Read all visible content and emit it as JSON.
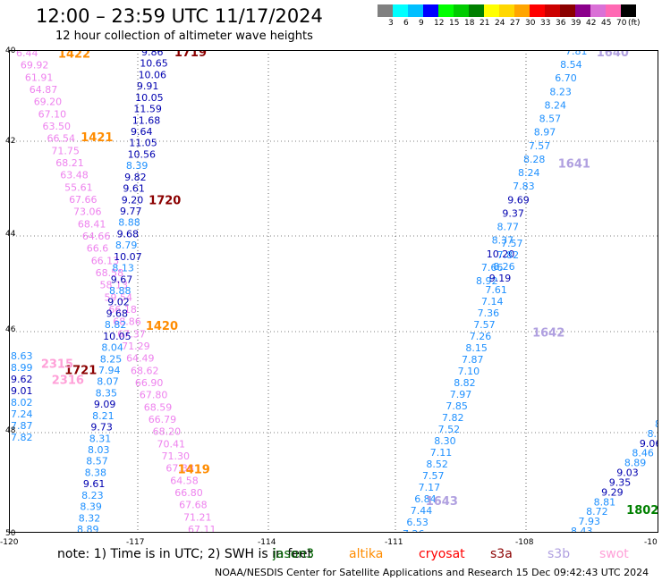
{
  "header": {
    "title": "12:00 – 23:59 UTC 11/17/2024",
    "subtitle": "12 hour collection of altimeter wave heights"
  },
  "colorbar": {
    "colors": [
      "#808080",
      "#00ffff",
      "#00bfff",
      "#0000ff",
      "#00ff00",
      "#00cc00",
      "#008000",
      "#ffff00",
      "#ffd700",
      "#ffa500",
      "#ff0000",
      "#cc0000",
      "#8b0000",
      "#8b008b",
      "#da70d6",
      "#ff69b4",
      "#000000"
    ],
    "labels": [
      "3",
      "6",
      "9",
      "12",
      "15",
      "18",
      "21",
      "24",
      "27",
      "30",
      "33",
      "36",
      "39",
      "42",
      "45",
      "70",
      "(ft)"
    ]
  },
  "axes": {
    "lat_labels": [
      "40",
      "42",
      "44",
      "46",
      "48",
      "50"
    ],
    "lon_labels": [
      "-120",
      "-117",
      "-114",
      "-111",
      "-108",
      "-10"
    ]
  },
  "map": {
    "x_range": [
      -120,
      -104.8
    ],
    "y_range": [
      40,
      50
    ],
    "grid": "dotted",
    "gridlines_lon": [
      -117,
      -114,
      -111,
      -108
    ],
    "gridlines_lat": [
      42,
      44,
      46,
      48
    ]
  },
  "mission_colors": {
    "jason3": "#0000b0",
    "sentinel6": "#0000b0",
    "altika": "#ff8c00",
    "cryosat": "#ff0000",
    "s3a": "#8b0000",
    "s3b": "#b0a0e0",
    "swot": "#ffa0d8",
    "cfosat": "#1e90ff",
    "hy2": "#20b0e0"
  },
  "tracks": [
    {
      "id": "1422",
      "mission": "altika",
      "pass_label": "1422",
      "label_lon": -118.85,
      "label_lat": 40.06,
      "points": []
    },
    {
      "id": "1719",
      "mission": "s3a",
      "pass_label": "1719",
      "label_lon": -116.13,
      "label_lat": 40.04,
      "points": []
    },
    {
      "id": "1720",
      "mission": "s3a",
      "pass_label": "1720",
      "label_lon": -116.73,
      "label_lat": 43.1,
      "points": []
    },
    {
      "id": "1721",
      "mission": "s3a",
      "pass_label": "1721",
      "label_lon": -118.7,
      "label_lat": 46.62,
      "points": []
    },
    {
      "id": "1802",
      "mission": "s3a-green",
      "pass_label": "1802",
      "label_lon": -105.55,
      "label_lat": 49.52,
      "points": []
    },
    {
      "id": "1421",
      "mission": "altika",
      "pass_label": "1421",
      "label_lon": -118.32,
      "label_lat": 41.8,
      "points": []
    },
    {
      "id": "1420",
      "mission": "altika",
      "pass_label": "1420",
      "label_lon": -116.8,
      "label_lat": 45.7,
      "points": []
    },
    {
      "id": "1419",
      "mission": "altika",
      "pass_label": "1419",
      "label_lon": -116.05,
      "label_lat": 48.68,
      "points": []
    },
    {
      "id": "1640",
      "mission": "s3b",
      "pass_label": "1640",
      "label_lon": -106.25,
      "label_lat": 40.04,
      "points": []
    },
    {
      "id": "1641",
      "mission": "s3b",
      "pass_label": "1641",
      "label_lon": -107.15,
      "label_lat": 42.34,
      "points": []
    },
    {
      "id": "1642",
      "mission": "s3b",
      "pass_label": "1642",
      "label_lon": -107.75,
      "label_lat": 45.84,
      "points": []
    },
    {
      "id": "1643",
      "mission": "s3b",
      "pass_label": "1643",
      "label_lon": -110.25,
      "label_lat": 49.33,
      "points": []
    },
    {
      "id": "2315",
      "mission": "swot",
      "pass_label": "2315",
      "label_lon": -119.25,
      "label_lat": 46.49,
      "points": []
    },
    {
      "id": "2316",
      "mission": "swot",
      "pass_label": "2316",
      "label_lon": -119.0,
      "label_lat": 46.82,
      "points": []
    }
  ],
  "values": {
    "swot_west": [
      "6.44",
      "69.92",
      "61.91",
      "64.87",
      "69.20",
      "67.10",
      "63.50",
      "66.54",
      "71.75",
      "68.21",
      "63.48",
      "55.61",
      "67.66",
      "73.06",
      "68.41",
      "64.66",
      "66.6",
      "66.13",
      "68.58",
      "58.13",
      "59.54",
      "66.18",
      "68.86",
      "67.37",
      "71.29",
      "64.49",
      "68.62",
      "66.90",
      "67.80",
      "68.59",
      "66.79",
      "68.20",
      "70.41",
      "71.30",
      "67.38",
      "64.58",
      "66.80",
      "67.68",
      "71.21",
      "67.11"
    ],
    "blue_west": [
      "9.86",
      "10.65",
      "10.06",
      "9.91",
      "10.05",
      "11.59",
      "11.68",
      "9.64",
      "11.05",
      "10.56",
      "8.39",
      "9.82",
      "9.61",
      "9.20",
      "9.77",
      "8.88",
      "9.68",
      "8.79",
      "10.07",
      "8.13",
      "9.67",
      "8.88",
      "9.02",
      "9.68",
      "8.82",
      "10.05",
      "8.04",
      "8.25",
      "7.94",
      "8.07",
      "8.35",
      "9.09",
      "8.21",
      "9.73",
      "8.31",
      "8.03",
      "8.57",
      "8.38",
      "9.61",
      "8.23",
      "8.39",
      "8.32",
      "8.89"
    ],
    "blue_farwest": [
      "8.63",
      "8.99",
      "9.62",
      "9.01",
      "8.02",
      "7.24",
      "7.87",
      "7.82"
    ],
    "east_1640": [
      "7.81",
      "8.54",
      "6.70",
      "8.23",
      "8.24",
      "8.57",
      "8.97",
      "7.57",
      "8.28",
      "8.24",
      "7.83",
      "9.69",
      "9.37",
      "8.77",
      "8.37",
      "10.20",
      "7.66",
      "8.92"
    ],
    "east_1642": [
      "7.57",
      "7.82",
      "8.26",
      "9.19",
      "7.61",
      "7.14",
      "7.36",
      "7.57",
      "7.26",
      "8.15",
      "7.87",
      "7.10",
      "8.82",
      "7.97",
      "7.85",
      "7.82",
      "7.52",
      "8.30",
      "7.11",
      "8.52",
      "7.57",
      "7.17",
      "6.84",
      "7.44",
      "6.53",
      "7.26"
    ],
    "se_track": [
      "8.1",
      "8.30",
      "9.06",
      "8.46",
      "8.89",
      "9.03",
      "9.35",
      "9.29",
      "8.81",
      "8.72",
      "7.93",
      "8.43"
    ]
  },
  "notes": {
    "prefix": "note:  1) Time is in UTC; 2) SWH is in feet",
    "missions": [
      "jason3",
      "altika",
      "cryosat",
      "s3a",
      "s3b",
      "swot"
    ]
  },
  "footer": "NOAA/NESDIS Center for Satellite Applications and Research    15 Dec 09:42:43 UTC 2024"
}
